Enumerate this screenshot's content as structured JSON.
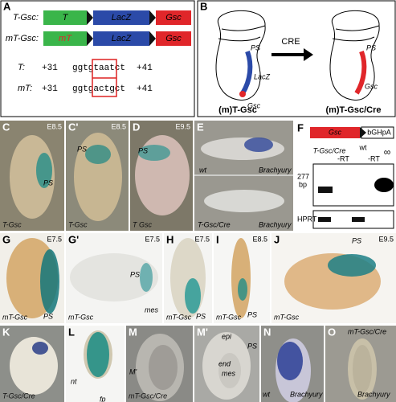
{
  "panel_a": {
    "label": "A",
    "constructs": [
      {
        "name": "T-Gsc:",
        "parts": [
          "T",
          "LacZ",
          "Gsc"
        ]
      },
      {
        "name": "mT-Gsc:",
        "parts": [
          "mT",
          "LacZ",
          "Gsc"
        ]
      }
    ],
    "sequences": [
      {
        "name": "T:",
        "start": "+31",
        "pre": "ggtg",
        "box": "taat",
        "post": "ct",
        "end": "+41"
      },
      {
        "name": "mT:",
        "start": "+31",
        "pre": "ggtg",
        "box": "actg",
        "post": "ct",
        "end": "+41"
      }
    ]
  },
  "panel_b": {
    "label": "B",
    "left_labels": [
      "PS",
      "LacZ",
      "Gsc"
    ],
    "left_caption": "(m)T-Gsc",
    "arrow": "CRE",
    "right_labels": [
      "PS",
      "Gsc"
    ],
    "right_caption": "(m)T-Gsc/Cre"
  },
  "panel_f": {
    "label": "F",
    "construct": [
      "Gsc",
      "bGHpA"
    ],
    "lanes": [
      "T-Gsc/Cre",
      "wt"
    ],
    "rt": [
      "-RT",
      "-RT"
    ],
    "marker": "∞",
    "size": [
      "277",
      "bp"
    ],
    "control": "HPRT"
  },
  "photo_panels": [
    {
      "label": "C",
      "stage": "E8.5",
      "labels": [
        "PS"
      ],
      "genotype": "T-Gsc"
    },
    {
      "label": "C'",
      "stage": "E8.5",
      "labels": [
        "PS"
      ],
      "genotype": "T-Gsc"
    },
    {
      "label": "D",
      "stage": "E9.5",
      "labels": [
        "PS"
      ],
      "genotype": "T Gsc"
    },
    {
      "label": "E",
      "labels": [
        "wt",
        "Brachyury",
        "T-Gsc/Cre",
        "Brachyury"
      ]
    },
    {
      "label": "G",
      "stage": "E7.5",
      "labels": [
        "PS"
      ],
      "genotype": "mT-Gsc"
    },
    {
      "label": "G'",
      "stage": "E7.5",
      "labels": [
        "PS",
        "mes"
      ],
      "genotype": "mT-Gsc"
    },
    {
      "label": "H",
      "stage": "E7.5",
      "labels": [
        "PS"
      ],
      "genotype": "mT-Gsc"
    },
    {
      "label": "I",
      "stage": "E8.5",
      "labels": [
        "PS"
      ],
      "genotype": "mT-Gsc"
    },
    {
      "label": "J",
      "stage": "E9.5",
      "labels": [
        "PS"
      ],
      "genotype": "mT-Gsc"
    },
    {
      "label": "K",
      "genotype": "T-Gsc/Cre"
    },
    {
      "label": "L",
      "labels": [
        "nt",
        "fp"
      ]
    },
    {
      "label": "M",
      "labels": [
        "M'"
      ],
      "genotype": "mT-Gsc/Cre"
    },
    {
      "label": "M'",
      "labels": [
        "epi",
        "PS",
        "end",
        "mes"
      ]
    },
    {
      "label": "N",
      "labels": [
        "wt",
        "Brachyury"
      ]
    },
    {
      "label": "O",
      "labels": [
        "mT-Gsc/Cre",
        "Brachyury"
      ]
    }
  ]
}
